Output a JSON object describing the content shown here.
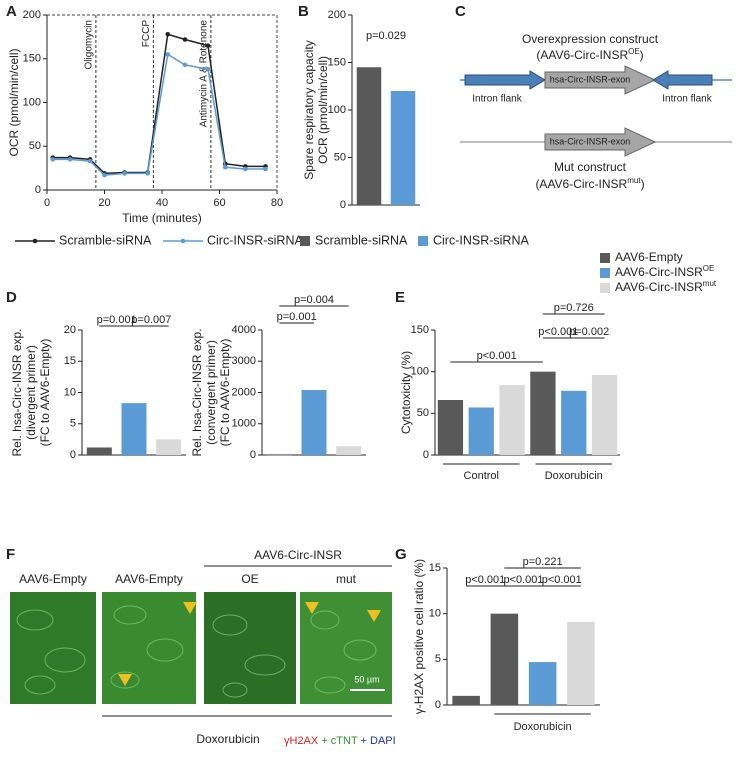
{
  "panel_labels": [
    "A",
    "B",
    "C",
    "D",
    "E",
    "F",
    "G"
  ],
  "chart_data": [
    {
      "type": "line",
      "xlabel": "Time (minutes)",
      "ylabel": [
        "OCR (pmol/min/cell)"
      ],
      "x": [
        2,
        8,
        15,
        20,
        27,
        35,
        42,
        48,
        56,
        62,
        69,
        76
      ],
      "series": [
        {
          "name": "Scramble-siRNA",
          "color": "#222222",
          "values": [
            37,
            37,
            35,
            19,
            20,
            20,
            178,
            172,
            165,
            30,
            27,
            27
          ]
        },
        {
          "name": "Circ-INSR-siRNA",
          "color": "#5b9bd5",
          "values": [
            35,
            35,
            33,
            17,
            19,
            19,
            155,
            143,
            138,
            26,
            24,
            24
          ]
        }
      ],
      "xlim": [
        0,
        80
      ],
      "xticks": [
        0,
        20,
        40,
        60,
        80
      ],
      "ylim": [
        0,
        200
      ],
      "yticks": [
        0,
        50,
        100,
        150,
        200
      ],
      "annotations": [
        {
          "text": "Oligomycin",
          "x": 17
        },
        {
          "text": "FCCP",
          "x": 37
        },
        {
          "text": "Antimycin A & Rotenone",
          "x": 57
        }
      ]
    },
    {
      "type": "bar",
      "ylabel": [
        "Spare respiratory capacity",
        "OCR (pmol/min/cell)"
      ],
      "categories": [
        null,
        null
      ],
      "values": [
        145,
        120
      ],
      "colors": [
        "#595959",
        "#5b9bd5"
      ],
      "legend": [
        "Scramble-siRNA",
        "Circ-INSR-siRNA"
      ],
      "ylim": [
        0,
        200
      ],
      "yticks": [
        0,
        50,
        100,
        150,
        200
      ],
      "annotations": [
        "p=0.029"
      ]
    },
    {
      "type": "bar",
      "ylabel": [
        "Rel. hsa-Circ-INSR exp.",
        "(divergent primer)",
        "(FC to AAV6-Empty)"
      ],
      "categories": [
        null,
        null,
        null
      ],
      "values": [
        1.2,
        8.3,
        2.5
      ],
      "colors": [
        "#595959",
        "#5b9bd5",
        "#d9d9d9"
      ],
      "ylim": [
        0,
        20
      ],
      "yticks": [
        0,
        5,
        10,
        15,
        20
      ],
      "annotations": [
        "p=0.001",
        "p=0.007"
      ]
    },
    {
      "type": "bar",
      "ylabel": [
        "Rel. hsa-Circ-INSR exp.",
        "(convergent primer)",
        "(FC to AAV6-Empty)"
      ],
      "categories": [
        null,
        null,
        null
      ],
      "values": [
        0,
        2080,
        280
      ],
      "colors": [
        "#595959",
        "#5b9bd5",
        "#d9d9d9"
      ],
      "ylim": [
        0,
        4000
      ],
      "yticks": [
        0,
        1000,
        2000,
        3000,
        4000
      ],
      "annotations": [
        "p=0.001",
        "p=0.004"
      ]
    },
    {
      "type": "bar",
      "ylabel": [
        "Cytotoxicity (%)"
      ],
      "categories": [
        "Control",
        "Doxorubicin"
      ],
      "series": [
        {
          "name": "AAV6-Empty",
          "color": "#595959",
          "values": [
            66,
            100
          ]
        },
        {
          "name": "AAV6-Circ-INSR",
          "name_sup": "OE",
          "color": "#5b9bd5",
          "values": [
            57,
            77
          ]
        },
        {
          "name": "AAV6-Circ-INSR",
          "name_sup": "mut",
          "color": "#d9d9d9",
          "values": [
            84,
            96
          ]
        }
      ],
      "ylim": [
        0,
        150
      ],
      "yticks": [
        0,
        50,
        100,
        150
      ],
      "annotations": [
        "p<0.001",
        "p<0.001",
        "p=0.002",
        "p=0.726"
      ]
    },
    {
      "type": "bar",
      "ylabel": [
        "γ-H2AX positive cell ratio (%)"
      ],
      "xlabel": "Doxorubicin",
      "categories": [
        null,
        null,
        null,
        null
      ],
      "values": [
        1.0,
        10.0,
        4.7,
        9.1
      ],
      "colors": [
        "#595959",
        "#595959",
        "#5b9bd5",
        "#d9d9d9"
      ],
      "ylim": [
        0,
        15
      ],
      "yticks": [
        0,
        5,
        10,
        15
      ],
      "annotations": [
        "p<0.001",
        "p<0.001",
        "p<0.001",
        "p=0.221"
      ]
    }
  ],
  "construct_diagram": {
    "oe_title": "Overexpression construct",
    "oe_name": "(AAV6-Circ-INSR",
    "oe_sup": "OE",
    "oe_close": ")",
    "exon": "hsa-Circ-INSR-exon",
    "intron_left": "Intron flank",
    "intron_right": "Intron flank",
    "mut_title": "Mut construct",
    "mut_name": "(AAV6-Circ-INSR",
    "mut_sup": "mut",
    "mut_close": ")"
  },
  "micrographs": {
    "labels": [
      "AAV6-Empty",
      "AAV6-Empty",
      "OE",
      "mut"
    ],
    "group_label": "AAV6-Circ-INSR",
    "scale_bar": "50 µm",
    "treatment": "Doxorubicin",
    "stain": [
      "γH2AX",
      "+ cTNT",
      "+ DAPI"
    ]
  }
}
